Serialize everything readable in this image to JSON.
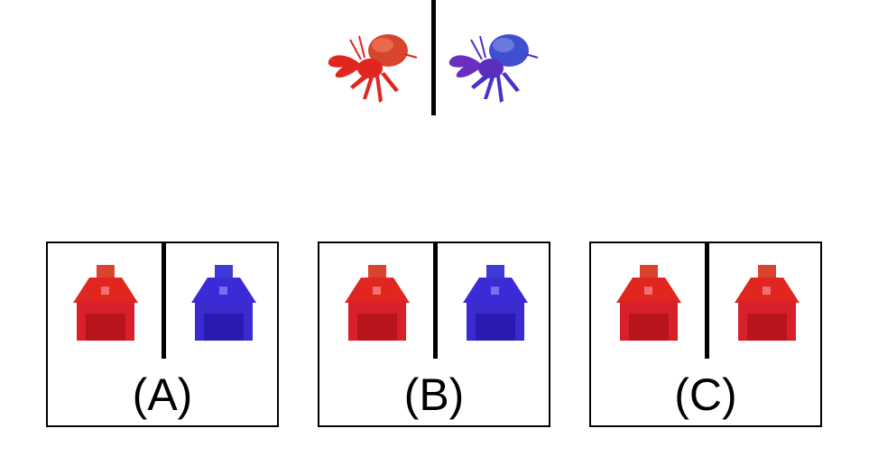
{
  "creatures": [
    {
      "name": "hermit-crab",
      "color": "#e0261e"
    },
    {
      "name": "hermit-crab",
      "color": "#4a2fc9"
    }
  ],
  "options": [
    {
      "label": "(A)",
      "houses": [
        {
          "color": "#e0261e",
          "icon": "barn"
        },
        {
          "color": "#3b2bd6",
          "icon": "barn"
        }
      ]
    },
    {
      "label": "(B)",
      "houses": [
        {
          "color": "#e0261e",
          "icon": "barn"
        },
        {
          "color": "#3b2bd6",
          "icon": "barn"
        }
      ]
    },
    {
      "label": "(C)",
      "houses": [
        {
          "color": "#e0261e",
          "icon": "barn"
        },
        {
          "color": "#e0261e",
          "icon": "barn"
        }
      ]
    }
  ]
}
